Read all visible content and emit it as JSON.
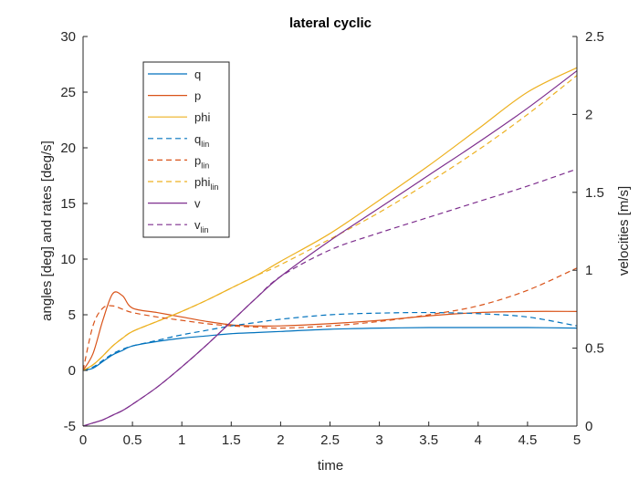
{
  "chart_data": {
    "type": "line",
    "title": "lateral cyclic",
    "xlabel": "time",
    "ylabel_left": "angles [deg] and rates [deg/s]",
    "ylabel_right": "velocities [m/s]",
    "xlim": [
      0,
      5
    ],
    "ylim_left": [
      -5,
      30
    ],
    "ylim_right": [
      0,
      2.5
    ],
    "xticks": [
      "0",
      "0.5",
      "1",
      "1.5",
      "2",
      "2.5",
      "3",
      "3.5",
      "4",
      "4.5",
      "5"
    ],
    "yticks_left": [
      "-5",
      "0",
      "5",
      "10",
      "15",
      "20",
      "25",
      "30"
    ],
    "yticks_right": [
      "0",
      "0.5",
      "1",
      "1.5",
      "2",
      "2.5"
    ],
    "grid": false,
    "legend_position": "top-left",
    "x": [
      0,
      0.1,
      0.2,
      0.3,
      0.4,
      0.5,
      0.75,
      1.0,
      1.25,
      1.5,
      1.75,
      2.0,
      2.5,
      3.0,
      3.5,
      4.0,
      4.5,
      5.0
    ],
    "series": [
      {
        "name": "q",
        "sub": "",
        "axis": "left",
        "color": "#0072BD",
        "dash": "solid",
        "values": [
          0,
          0.2,
          0.8,
          1.4,
          1.8,
          2.2,
          2.6,
          2.9,
          3.1,
          3.3,
          3.4,
          3.5,
          3.7,
          3.8,
          3.85,
          3.85,
          3.85,
          3.8
        ]
      },
      {
        "name": "p",
        "sub": "",
        "axis": "left",
        "color": "#D95319",
        "dash": "solid",
        "values": [
          0,
          1.5,
          4.5,
          6.9,
          6.7,
          5.6,
          5.2,
          4.8,
          4.4,
          4.1,
          4.0,
          4.0,
          4.2,
          4.5,
          4.9,
          5.2,
          5.3,
          5.3
        ]
      },
      {
        "name": "phi",
        "sub": "",
        "axis": "left",
        "color": "#EDB120",
        "dash": "solid",
        "values": [
          0,
          0.5,
          1.3,
          2.2,
          2.9,
          3.5,
          4.4,
          5.3,
          6.3,
          7.4,
          8.5,
          9.8,
          12.3,
          15.3,
          18.4,
          21.7,
          25.0,
          27.2
        ]
      },
      {
        "name": "q",
        "sub": "lin",
        "axis": "left",
        "color": "#0072BD",
        "dash": "dashed",
        "values": [
          0,
          0.3,
          0.9,
          1.5,
          1.9,
          2.2,
          2.7,
          3.2,
          3.6,
          4.0,
          4.3,
          4.6,
          5.0,
          5.15,
          5.2,
          5.1,
          4.8,
          4.0
        ]
      },
      {
        "name": "p",
        "sub": "lin",
        "axis": "left",
        "color": "#D95319",
        "dash": "dashed",
        "values": [
          0,
          4.0,
          5.6,
          5.8,
          5.5,
          5.2,
          4.8,
          4.5,
          4.2,
          4.0,
          3.9,
          3.8,
          4.0,
          4.4,
          5.0,
          5.8,
          7.2,
          9.2
        ]
      },
      {
        "name": "phi",
        "sub": "lin",
        "axis": "left",
        "color": "#EDB120",
        "dash": "dashed",
        "values": [
          0,
          0.5,
          1.3,
          2.2,
          2.9,
          3.5,
          4.4,
          5.3,
          6.3,
          7.4,
          8.5,
          9.5,
          11.8,
          14.2,
          16.9,
          19.8,
          23.0,
          26.5
        ]
      },
      {
        "name": "v",
        "sub": "",
        "axis": "right",
        "color": "#7E2F8E",
        "dash": "solid",
        "values": [
          0,
          0.02,
          0.04,
          0.07,
          0.1,
          0.14,
          0.25,
          0.38,
          0.52,
          0.67,
          0.82,
          0.96,
          1.19,
          1.4,
          1.61,
          1.82,
          2.04,
          2.28
        ]
      },
      {
        "name": "v",
        "sub": "lin",
        "axis": "right",
        "color": "#7E2F8E",
        "dash": "dashed",
        "values": [
          0,
          0.02,
          0.04,
          0.07,
          0.1,
          0.14,
          0.25,
          0.38,
          0.52,
          0.67,
          0.82,
          0.96,
          1.13,
          1.24,
          1.34,
          1.44,
          1.54,
          1.65
        ]
      }
    ]
  }
}
